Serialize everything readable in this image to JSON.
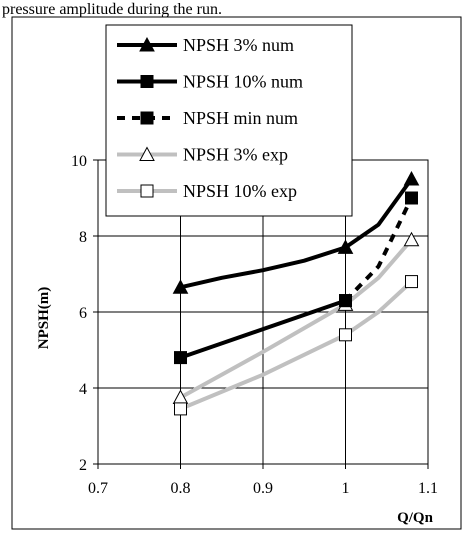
{
  "page_caption": "pressure amplitude during the run.",
  "chart_data": {
    "type": "line",
    "xlabel": "Q/Qn",
    "ylabel": "NPSH(m)",
    "xlim": [
      0.7,
      1.1
    ],
    "ylim": [
      2,
      10
    ],
    "x_ticks": [
      "0.7",
      "0.8",
      "0.9",
      "1",
      "1.1"
    ],
    "y_ticks": [
      "2",
      "4",
      "6",
      "8",
      "10"
    ],
    "grid": true,
    "legend_position": "top-left",
    "series": [
      {
        "name": "NPSH 3% num",
        "color": "#000000",
        "style": "solid",
        "marker": "filled-triangle",
        "x": [
          0.8,
          1.0,
          1.08
        ],
        "y": [
          6.65,
          7.7,
          9.5
        ],
        "curve": [
          [
            0.8,
            6.65
          ],
          [
            0.85,
            6.9
          ],
          [
            0.9,
            7.1
          ],
          [
            0.95,
            7.35
          ],
          [
            1.0,
            7.7
          ],
          [
            1.04,
            8.3
          ],
          [
            1.08,
            9.5
          ]
        ]
      },
      {
        "name": "NPSH 10% num",
        "color": "#000000",
        "style": "solid",
        "marker": "filled-square",
        "x": [
          0.8,
          1.0
        ],
        "y": [
          4.8,
          6.3
        ],
        "curve": [
          [
            0.8,
            4.8
          ],
          [
            1.0,
            6.3
          ]
        ]
      },
      {
        "name": "NPSH min num",
        "color": "#000000",
        "style": "dashed",
        "marker": "filled-square",
        "x": [
          1.0,
          1.08
        ],
        "y": [
          6.3,
          9.0
        ],
        "curve": [
          [
            1.0,
            6.3
          ],
          [
            1.04,
            7.2
          ],
          [
            1.08,
            9.0
          ]
        ]
      },
      {
        "name": "NPSH 3% exp",
        "color": "#c0c0c0",
        "style": "solid",
        "marker": "open-triangle",
        "x": [
          0.8,
          1.0,
          1.08
        ],
        "y": [
          3.75,
          6.2,
          7.9
        ],
        "curve": [
          [
            0.8,
            3.75
          ],
          [
            0.9,
            4.95
          ],
          [
            1.0,
            6.2
          ],
          [
            1.04,
            6.9
          ],
          [
            1.08,
            7.9
          ]
        ]
      },
      {
        "name": "NPSH 10% exp",
        "color": "#c0c0c0",
        "style": "solid",
        "marker": "open-square",
        "x": [
          0.8,
          1.0,
          1.08
        ],
        "y": [
          3.45,
          5.4,
          6.8
        ],
        "curve": [
          [
            0.8,
            3.45
          ],
          [
            0.9,
            4.35
          ],
          [
            1.0,
            5.4
          ],
          [
            1.04,
            6.0
          ],
          [
            1.08,
            6.8
          ]
        ]
      }
    ]
  }
}
